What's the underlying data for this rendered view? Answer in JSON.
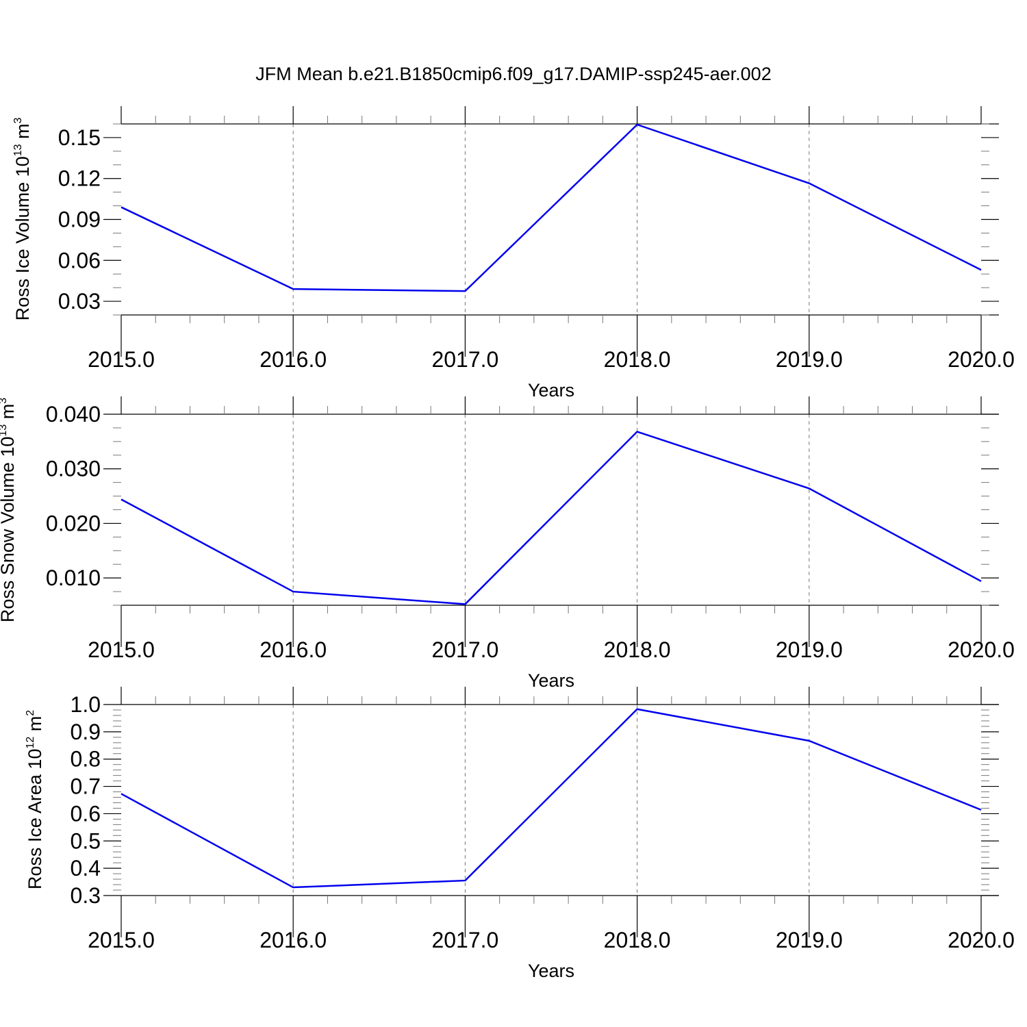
{
  "title": "JFM Mean b.e21.B1850cmip6.f09_g17.DAMIP-ssp245-aer.002",
  "colors": {
    "line": "#0000ee",
    "axis": "#000000",
    "grid": "#777777"
  },
  "chart_data": [
    {
      "type": "line",
      "xlabel": "Years",
      "ylabel": {
        "text": "Ross Ice Volume 10",
        "exp": "13",
        "unit": " m",
        "unit_exp": "3"
      },
      "x": [
        2015,
        2016,
        2017,
        2018,
        2019,
        2020
      ],
      "series": [
        {
          "values": [
            0.099,
            0.039,
            0.0375,
            0.1595,
            0.1165,
            0.053
          ]
        }
      ],
      "xlim": [
        2015,
        2020
      ],
      "ylim": [
        0.02,
        0.16
      ],
      "xticks": [
        "2015.0",
        "2016.0",
        "2017.0",
        "2018.0",
        "2019.0",
        "2020.0"
      ],
      "yticks": [
        "0.03",
        "0.06",
        "0.09",
        "0.12",
        "0.15"
      ],
      "grid": "vertical dashed at major x ticks"
    },
    {
      "type": "line",
      "xlabel": "Years",
      "ylabel": {
        "text": "Ross Snow Volume 10",
        "exp": "13",
        "unit": " m",
        "unit_exp": "3"
      },
      "x": [
        2015,
        2016,
        2017,
        2018,
        2019,
        2020
      ],
      "series": [
        {
          "values": [
            0.0244,
            0.0075,
            0.0052,
            0.0368,
            0.0264,
            0.0094
          ]
        }
      ],
      "xlim": [
        2015,
        2020
      ],
      "ylim": [
        0.005,
        0.04
      ],
      "xticks": [
        "2015.0",
        "2016.0",
        "2017.0",
        "2018.0",
        "2019.0",
        "2020.0"
      ],
      "yticks": [
        "0.010",
        "0.020",
        "0.030",
        "0.040"
      ],
      "grid": "vertical dashed at major x ticks"
    },
    {
      "type": "line",
      "xlabel": "Years",
      "ylabel": {
        "text": "Ross Ice Area 10",
        "exp": "12",
        "unit": " m",
        "unit_exp": "2"
      },
      "x": [
        2015,
        2016,
        2017,
        2018,
        2019,
        2020
      ],
      "series": [
        {
          "values": [
            0.673,
            0.33,
            0.355,
            0.983,
            0.867,
            0.614
          ]
        }
      ],
      "xlim": [
        2015,
        2020
      ],
      "ylim": [
        0.3,
        1.0
      ],
      "xticks": [
        "2015.0",
        "2016.0",
        "2017.0",
        "2018.0",
        "2019.0",
        "2020.0"
      ],
      "yticks": [
        "0.3",
        "0.4",
        "0.5",
        "0.6",
        "0.7",
        "0.8",
        "0.9",
        "1.0"
      ],
      "grid": "vertical dashed at major x ticks"
    }
  ]
}
